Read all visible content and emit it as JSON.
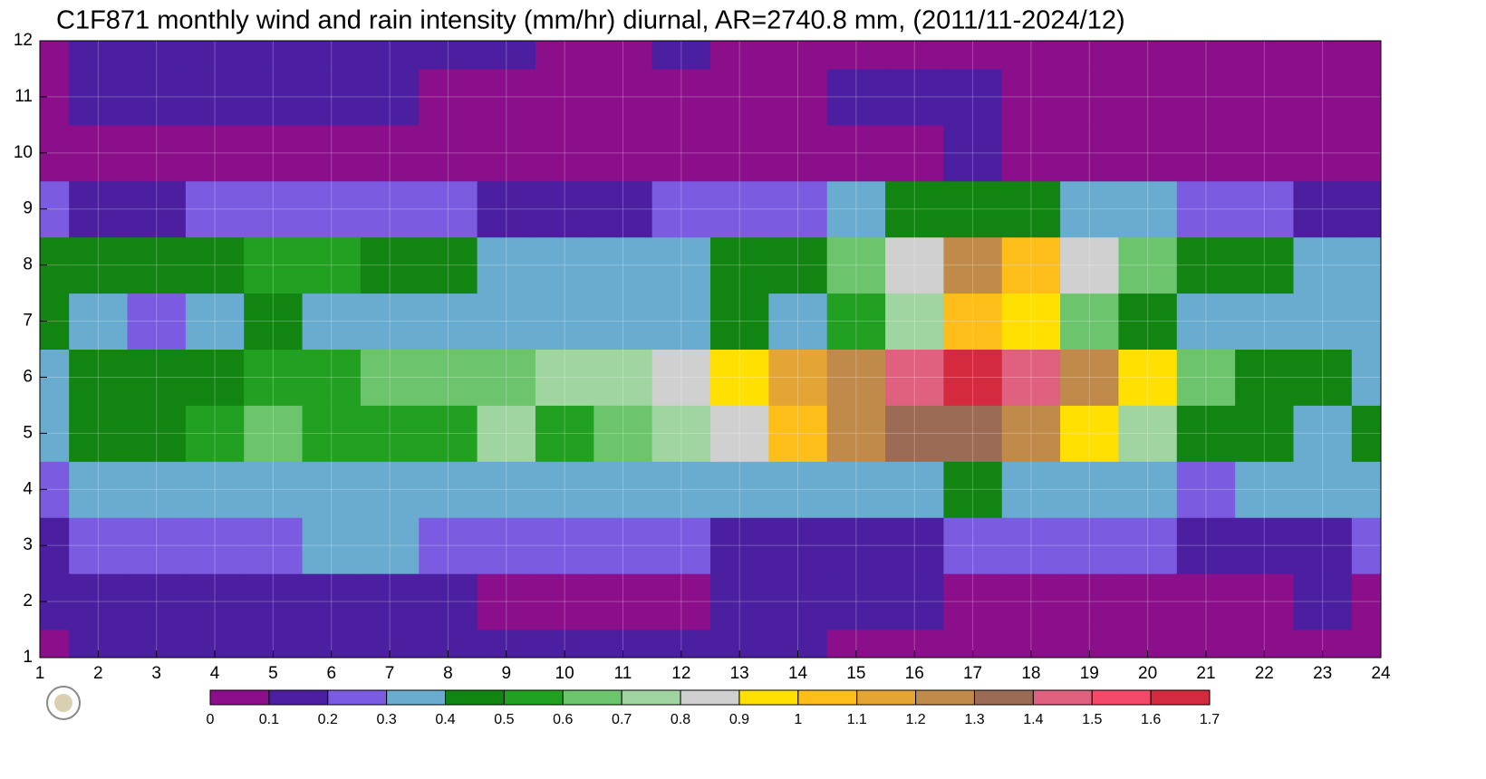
{
  "chart_data": {
    "type": "contour",
    "title": "C1F871 monthly wind and rain intensity (mm/hr) diurnal, AR=2740.8 mm, (2011/11-2024/12)",
    "x": [
      1,
      2,
      3,
      4,
      5,
      6,
      7,
      8,
      9,
      10,
      11,
      12,
      13,
      14,
      15,
      16,
      17,
      18,
      19,
      20,
      21,
      22,
      23,
      24
    ],
    "y": [
      1,
      2,
      3,
      4,
      5,
      6,
      7,
      8,
      9,
      10,
      11,
      12
    ],
    "z": [
      [
        0.05,
        0.15,
        0.15,
        0.15,
        0.15,
        0.15,
        0.15,
        0.15,
        0.15,
        0.15,
        0.15,
        0.15,
        0.15,
        0.12,
        0.05,
        0.05,
        0.05,
        0.05,
        0.05,
        0.05,
        0.05,
        0.05,
        0.05,
        0.05
      ],
      [
        0.15,
        0.15,
        0.15,
        0.15,
        0.15,
        0.15,
        0.15,
        0.12,
        0.07,
        0.07,
        0.07,
        0.08,
        0.15,
        0.15,
        0.12,
        0.1,
        0.05,
        0.07,
        0.08,
        0.08,
        0.08,
        0.08,
        0.1,
        0.09
      ],
      [
        0.18,
        0.2,
        0.2,
        0.25,
        0.25,
        0.32,
        0.32,
        0.28,
        0.2,
        0.2,
        0.2,
        0.2,
        0.15,
        0.15,
        0.15,
        0.18,
        0.25,
        0.22,
        0.22,
        0.22,
        0.18,
        0.18,
        0.18,
        0.2
      ],
      [
        0.25,
        0.3,
        0.32,
        0.35,
        0.35,
        0.35,
        0.38,
        0.35,
        0.32,
        0.32,
        0.32,
        0.32,
        0.32,
        0.32,
        0.3,
        0.35,
        0.45,
        0.38,
        0.35,
        0.3,
        0.28,
        0.32,
        0.3,
        0.35
      ],
      [
        0.38,
        0.42,
        0.45,
        0.5,
        0.65,
        0.55,
        0.55,
        0.55,
        0.75,
        0.55,
        0.6,
        0.7,
        0.8,
        1.05,
        1.2,
        1.3,
        1.3,
        1.2,
        0.95,
        0.75,
        0.45,
        0.42,
        0.38,
        0.4
      ],
      [
        0.35,
        0.45,
        0.45,
        0.45,
        0.55,
        0.55,
        0.62,
        0.65,
        0.6,
        0.72,
        0.75,
        0.85,
        0.95,
        1.1,
        1.2,
        1.4,
        1.6,
        1.45,
        1.2,
        0.9,
        0.6,
        0.45,
        0.42,
        0.35
      ],
      [
        0.45,
        0.35,
        0.25,
        0.38,
        0.42,
        0.35,
        0.35,
        0.35,
        0.35,
        0.35,
        0.35,
        0.38,
        0.45,
        0.32,
        0.5,
        0.75,
        1.0,
        0.9,
        0.6,
        0.42,
        0.35,
        0.35,
        0.35,
        0.35
      ],
      [
        0.42,
        0.45,
        0.45,
        0.45,
        0.55,
        0.52,
        0.45,
        0.4,
        0.35,
        0.35,
        0.35,
        0.38,
        0.45,
        0.45,
        0.6,
        0.8,
        1.25,
        1.05,
        0.85,
        0.6,
        0.45,
        0.42,
        0.38,
        0.35
      ],
      [
        0.25,
        0.18,
        0.18,
        0.2,
        0.22,
        0.22,
        0.22,
        0.2,
        0.15,
        0.15,
        0.18,
        0.2,
        0.22,
        0.25,
        0.3,
        0.4,
        0.45,
        0.4,
        0.35,
        0.3,
        0.25,
        0.2,
        0.18,
        0.18
      ],
      [
        0.05,
        0.05,
        0.05,
        0.05,
        0.05,
        0.05,
        0.05,
        0.05,
        0.05,
        0.05,
        0.05,
        0.05,
        0.05,
        0.05,
        0.05,
        0.05,
        0.1,
        0.05,
        0.05,
        0.05,
        0.05,
        0.05,
        0.05,
        0.05
      ],
      [
        0.08,
        0.15,
        0.15,
        0.15,
        0.12,
        0.12,
        0.15,
        0.08,
        0.05,
        0.05,
        0.05,
        0.05,
        0.05,
        0.05,
        0.15,
        0.15,
        0.15,
        0.05,
        0.05,
        0.05,
        0.05,
        0.05,
        0.05,
        0.05
      ],
      [
        0.05,
        0.12,
        0.15,
        0.15,
        0.15,
        0.15,
        0.15,
        0.15,
        0.12,
        0.05,
        0.05,
        0.15,
        0.05,
        0.05,
        0.05,
        0.05,
        0.05,
        0.05,
        0.05,
        0.05,
        0.05,
        0.05,
        0.05,
        0.05
      ]
    ],
    "levels": [
      0,
      0.1,
      0.2,
      0.3,
      0.4,
      0.5,
      0.6,
      0.7,
      0.8,
      0.9,
      1,
      1.1,
      1.2,
      1.3,
      1.4,
      1.5,
      1.6,
      1.7
    ],
    "colors": [
      "#8b0f8b",
      "#4b1fa0",
      "#7b5ce0",
      "#6aaccf",
      "#128412",
      "#22a022",
      "#6cc46c",
      "#a0d4a0",
      "#d0d0d0",
      "#ffe000",
      "#fdbe1a",
      "#e5a535",
      "#bf8a4a",
      "#9c6b55",
      "#e06080",
      "#f44a6a",
      "#d42a40"
    ],
    "xlim": [
      1,
      24
    ],
    "ylim": [
      1,
      12
    ],
    "xticks": [
      1,
      2,
      3,
      4,
      5,
      6,
      7,
      8,
      9,
      10,
      11,
      12,
      13,
      14,
      15,
      16,
      17,
      18,
      19,
      20,
      21,
      22,
      23,
      24
    ],
    "yticks": [
      1,
      2,
      3,
      4,
      5,
      6,
      7,
      8,
      9,
      10,
      11,
      12
    ],
    "grid": true
  }
}
